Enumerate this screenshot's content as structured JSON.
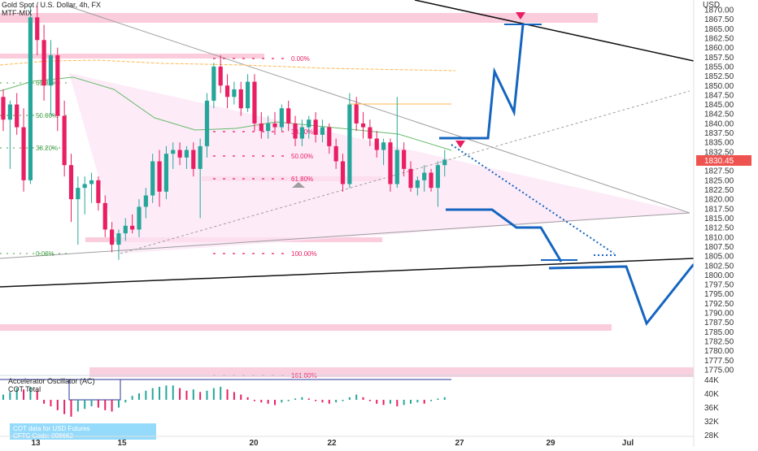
{
  "header": {
    "symbol_title": "Gold Spot / U.S. Dollar, 4h, FX",
    "study_label": "MTF-MIX"
  },
  "price_axis": {
    "currency": "USD",
    "ticks": [
      "1870.00",
      "1867.50",
      "1865.00",
      "1862.50",
      "1860.00",
      "1857.50",
      "1855.00",
      "1852.50",
      "1850.00",
      "1847.50",
      "1845.00",
      "1842.50",
      "1840.00",
      "1837.50",
      "1835.00",
      "1832.50",
      "1827.50",
      "1825.00",
      "1822.50",
      "1820.00",
      "1817.50",
      "1815.00",
      "1812.50",
      "1810.00",
      "1807.50",
      "1805.00",
      "1802.50",
      "1800.00",
      "1797.50",
      "1795.00",
      "1792.50",
      "1790.00",
      "1787.50",
      "1785.00",
      "1782.50",
      "1780.00",
      "1777.50",
      "1775.00"
    ],
    "current_price_label": "1830.45",
    "current_price_color": "#ef5350"
  },
  "time_axis": {
    "ticks": [
      "13",
      "15",
      "20",
      "22",
      "27",
      "29",
      "Jul"
    ]
  },
  "fib_left": {
    "levels": [
      "61.80%",
      "50.00%",
      "38.20%",
      "0.00%"
    ]
  },
  "fib_right": {
    "levels": [
      "0.00%",
      "38.20%",
      "50.00%",
      "61.80%",
      "100.00%",
      "161.80%"
    ]
  },
  "oscillator": {
    "title": "Accelerator Oscillator (AC)",
    "subtitle": "COT Total",
    "axis_ticks": [
      "44K",
      "40K",
      "36K",
      "32K",
      "28K"
    ],
    "info_line1": "COT data for USD Futures",
    "info_line2": "CFTC Code: 098662"
  },
  "colors": {
    "up_candle": "#26a69a",
    "down_candle": "#e91e63",
    "pink_zone": "#f8bbd0",
    "triangle_fill": "#fce4f5",
    "projection": "#1565c0",
    "trendline": "#111111",
    "ma_green": "#66bb6a",
    "ma_orange": "#ffb74d",
    "marker_magenta": "#e91e63"
  },
  "chart_data": {
    "type": "candlestick",
    "title": "Gold Spot / U.S. Dollar, 4h, FX",
    "ylim": [
      1772.5,
      1872.5
    ],
    "candles": [
      {
        "o": 1847.0,
        "h": 1849.0,
        "l": 1838.0,
        "c": 1841.0
      },
      {
        "o": 1841.0,
        "h": 1846.0,
        "l": 1828.0,
        "c": 1845.0
      },
      {
        "o": 1845.0,
        "h": 1848.0,
        "l": 1837.0,
        "c": 1839.0
      },
      {
        "o": 1839.0,
        "h": 1844.0,
        "l": 1822.0,
        "c": 1825.0
      },
      {
        "o": 1825.0,
        "h": 1871.0,
        "l": 1824.0,
        "c": 1868.0
      },
      {
        "o": 1868.0,
        "h": 1871.0,
        "l": 1858.0,
        "c": 1862.0
      },
      {
        "o": 1862.0,
        "h": 1866.0,
        "l": 1846.0,
        "c": 1850.0
      },
      {
        "o": 1850.0,
        "h": 1862.0,
        "l": 1842.0,
        "c": 1858.0
      },
      {
        "o": 1858.0,
        "h": 1860.0,
        "l": 1838.0,
        "c": 1842.0
      },
      {
        "o": 1842.0,
        "h": 1846.0,
        "l": 1826.0,
        "c": 1829.0
      },
      {
        "o": 1829.0,
        "h": 1832.0,
        "l": 1814.0,
        "c": 1820.0
      },
      {
        "o": 1820.0,
        "h": 1826.0,
        "l": 1808.0,
        "c": 1823.0
      },
      {
        "o": 1823.0,
        "h": 1826.0,
        "l": 1816.0,
        "c": 1824.0
      },
      {
        "o": 1824.0,
        "h": 1827.0,
        "l": 1819.0,
        "c": 1825.0
      },
      {
        "o": 1825.0,
        "h": 1826.0,
        "l": 1817.0,
        "c": 1819.0
      },
      {
        "o": 1819.0,
        "h": 1821.0,
        "l": 1810.0,
        "c": 1812.0
      },
      {
        "o": 1812.0,
        "h": 1814.0,
        "l": 1806.0,
        "c": 1808.0
      },
      {
        "o": 1808.0,
        "h": 1812.0,
        "l": 1804.0,
        "c": 1811.0
      },
      {
        "o": 1811.0,
        "h": 1815.0,
        "l": 1809.0,
        "c": 1813.0
      },
      {
        "o": 1813.0,
        "h": 1816.0,
        "l": 1811.0,
        "c": 1812.0
      },
      {
        "o": 1812.0,
        "h": 1820.0,
        "l": 1810.0,
        "c": 1818.0
      },
      {
        "o": 1818.0,
        "h": 1823.0,
        "l": 1815.0,
        "c": 1821.0
      },
      {
        "o": 1821.0,
        "h": 1832.0,
        "l": 1819.0,
        "c": 1830.0
      },
      {
        "o": 1830.0,
        "h": 1833.0,
        "l": 1818.0,
        "c": 1822.0
      },
      {
        "o": 1822.0,
        "h": 1834.0,
        "l": 1820.0,
        "c": 1832.0
      },
      {
        "o": 1832.0,
        "h": 1835.0,
        "l": 1828.0,
        "c": 1833.0
      },
      {
        "o": 1833.0,
        "h": 1835.0,
        "l": 1829.0,
        "c": 1831.0
      },
      {
        "o": 1831.0,
        "h": 1834.0,
        "l": 1828.0,
        "c": 1833.0
      },
      {
        "o": 1833.0,
        "h": 1835.0,
        "l": 1826.0,
        "c": 1828.0
      },
      {
        "o": 1828.0,
        "h": 1836.0,
        "l": 1815.0,
        "c": 1834.0
      },
      {
        "o": 1834.0,
        "h": 1848.0,
        "l": 1831.0,
        "c": 1846.0
      },
      {
        "o": 1846.0,
        "h": 1856.0,
        "l": 1844.0,
        "c": 1855.0
      },
      {
        "o": 1855.0,
        "h": 1858.0,
        "l": 1848.0,
        "c": 1850.0
      },
      {
        "o": 1850.0,
        "h": 1853.0,
        "l": 1844.0,
        "c": 1847.0
      },
      {
        "o": 1847.0,
        "h": 1851.0,
        "l": 1845.0,
        "c": 1849.0
      },
      {
        "o": 1849.0,
        "h": 1851.0,
        "l": 1842.0,
        "c": 1844.0
      },
      {
        "o": 1844.0,
        "h": 1853.0,
        "l": 1843.0,
        "c": 1851.0
      },
      {
        "o": 1851.0,
        "h": 1853.0,
        "l": 1838.0,
        "c": 1840.0
      },
      {
        "o": 1840.0,
        "h": 1843.0,
        "l": 1836.0,
        "c": 1838.0
      },
      {
        "o": 1838.0,
        "h": 1842.0,
        "l": 1836.0,
        "c": 1840.0
      },
      {
        "o": 1840.0,
        "h": 1843.0,
        "l": 1837.0,
        "c": 1839.0
      },
      {
        "o": 1839.0,
        "h": 1845.0,
        "l": 1838.0,
        "c": 1844.0
      },
      {
        "o": 1844.0,
        "h": 1846.0,
        "l": 1838.0,
        "c": 1840.0
      },
      {
        "o": 1840.0,
        "h": 1842.0,
        "l": 1834.0,
        "c": 1836.0
      },
      {
        "o": 1836.0,
        "h": 1841.0,
        "l": 1834.0,
        "c": 1839.0
      },
      {
        "o": 1839.0,
        "h": 1842.0,
        "l": 1836.0,
        "c": 1841.0
      },
      {
        "o": 1841.0,
        "h": 1843.0,
        "l": 1835.0,
        "c": 1837.0
      },
      {
        "o": 1837.0,
        "h": 1841.0,
        "l": 1835.0,
        "c": 1839.0
      },
      {
        "o": 1839.0,
        "h": 1840.0,
        "l": 1832.0,
        "c": 1834.0
      },
      {
        "o": 1834.0,
        "h": 1836.0,
        "l": 1828.0,
        "c": 1830.0
      },
      {
        "o": 1830.0,
        "h": 1832.0,
        "l": 1822.0,
        "c": 1824.0
      },
      {
        "o": 1824.0,
        "h": 1848.0,
        "l": 1823.0,
        "c": 1845.0
      },
      {
        "o": 1845.0,
        "h": 1847.0,
        "l": 1838.0,
        "c": 1840.0
      },
      {
        "o": 1840.0,
        "h": 1843.0,
        "l": 1836.0,
        "c": 1839.0
      },
      {
        "o": 1839.0,
        "h": 1841.0,
        "l": 1834.0,
        "c": 1836.0
      },
      {
        "o": 1836.0,
        "h": 1838.0,
        "l": 1831.0,
        "c": 1833.0
      },
      {
        "o": 1833.0,
        "h": 1836.0,
        "l": 1829.0,
        "c": 1835.0
      },
      {
        "o": 1835.0,
        "h": 1836.0,
        "l": 1822.0,
        "c": 1824.0
      },
      {
        "o": 1824.0,
        "h": 1847.0,
        "l": 1823.0,
        "c": 1833.0
      },
      {
        "o": 1833.0,
        "h": 1835.0,
        "l": 1826.0,
        "c": 1828.0
      },
      {
        "o": 1828.0,
        "h": 1830.0,
        "l": 1822.0,
        "c": 1823.0
      },
      {
        "o": 1823.0,
        "h": 1826.0,
        "l": 1821.0,
        "c": 1825.0
      },
      {
        "o": 1825.0,
        "h": 1829.0,
        "l": 1822.0,
        "c": 1827.0
      },
      {
        "o": 1827.0,
        "h": 1828.0,
        "l": 1822.0,
        "c": 1823.0
      },
      {
        "o": 1823.0,
        "h": 1830.0,
        "l": 1818.0,
        "c": 1829.0
      },
      {
        "o": 1829.0,
        "h": 1833.0,
        "l": 1826.0,
        "c": 1830.45
      }
    ],
    "oscillator_values": [
      0.4,
      0.6,
      0.9,
      0.8,
      1.0,
      0.7,
      -0.3,
      -0.5,
      -0.8,
      -1.1,
      -1.3,
      -0.9,
      -0.7,
      -0.5,
      -0.6,
      -0.8,
      -0.9,
      -0.6,
      -0.2,
      0.3,
      0.5,
      0.7,
      0.9,
      1.0,
      1.1,
      1.1,
      0.9,
      0.7,
      0.8,
      0.6,
      0.7,
      0.9,
      1.0,
      0.8,
      0.6,
      0.4,
      0.2,
      -0.1,
      -0.2,
      -0.3,
      -0.4,
      -0.2,
      -0.1,
      0.1,
      0.2,
      0.1,
      -0.1,
      -0.2,
      -0.3,
      -0.2,
      -0.1,
      0.2,
      0.4,
      0.2,
      -0.1,
      -0.3,
      -0.4,
      -0.3,
      -0.5,
      -0.4,
      -0.3,
      -0.2,
      -0.3,
      -0.1,
      0.1,
      0.2
    ],
    "x_ticks": [
      "13",
      "15",
      "20",
      "22",
      "27",
      "29",
      "Jul"
    ],
    "y_ticks": [
      "1870.00",
      "1867.50",
      "1865.00",
      "1862.50",
      "1860.00",
      "1857.50",
      "1855.00",
      "1852.50",
      "1850.00",
      "1847.50",
      "1845.00",
      "1842.50",
      "1840.00",
      "1837.50",
      "1835.00",
      "1832.50",
      "1827.50",
      "1825.00",
      "1822.50",
      "1820.00",
      "1817.50",
      "1815.00",
      "1812.50",
      "1810.00",
      "1807.50",
      "1805.00",
      "1802.50",
      "1800.00",
      "1797.50",
      "1795.00",
      "1792.50",
      "1790.00",
      "1787.50",
      "1785.00",
      "1782.50",
      "1780.00",
      "1777.50",
      "1775.00"
    ],
    "current_price": 1830.45,
    "grid": false,
    "legend": "top-left"
  }
}
